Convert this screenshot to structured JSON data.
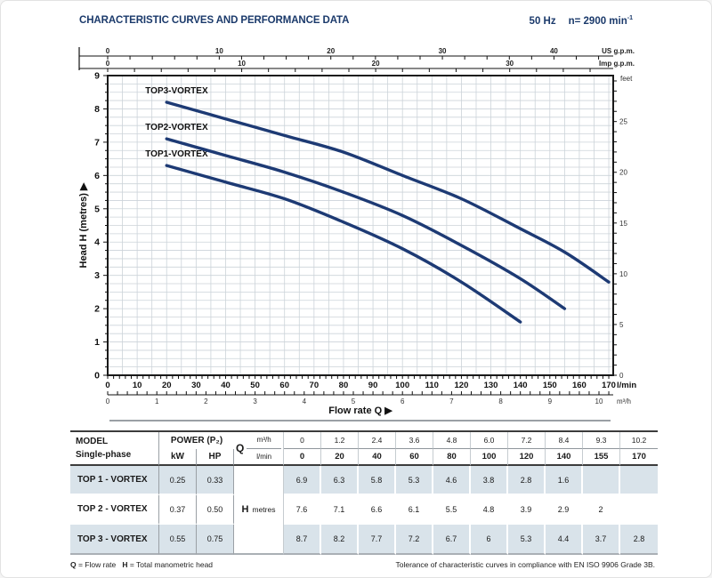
{
  "header": {
    "title": "CHARACTERISTIC CURVES AND PERFORMANCE DATA",
    "frequency": "50 Hz",
    "speed": "n= 2900 min",
    "speed_sup": "-1"
  },
  "chart_data": {
    "type": "line",
    "xlabel": "Flow rate Q",
    "xlabel_arrow": "▶",
    "ylabel": "Head H (metres)",
    "ylabel_arrow": "▶",
    "x_min": 0,
    "x_max": 171.5,
    "y_min": 0,
    "y_max": 9,
    "x_grid_step": 5,
    "y_grid_step": 0.25,
    "grid": true,
    "series_color": "#1d3a74",
    "axes": {
      "us_gpm": {
        "unit_label": "US g.p.m.",
        "factor_to_lmin": 3.785,
        "labels": [
          0,
          10,
          20,
          30,
          40
        ],
        "minor_step": 2
      },
      "imp_gpm": {
        "unit_label": "Imp g.p.m.",
        "factor_to_lmin": 4.546,
        "labels": [
          0,
          10,
          20,
          30
        ],
        "minor_step": 2
      },
      "lmin": {
        "unit_label": "l/min",
        "labels": [
          0,
          10,
          20,
          30,
          40,
          50,
          60,
          70,
          80,
          90,
          100,
          110,
          120,
          130,
          140,
          150,
          160,
          170
        ],
        "minor_step": 2
      },
      "m3h": {
        "unit_label": "m³/h",
        "factor_to_lmin": 16.667,
        "labels": [
          0,
          1,
          2,
          3,
          4,
          5,
          6,
          7,
          8,
          9,
          10
        ],
        "minor_step": 0.2
      },
      "metres": {
        "labels": [
          0,
          1,
          2,
          3,
          4,
          5,
          6,
          7,
          8,
          9
        ],
        "minor_step": 0.25
      },
      "feet": {
        "unit_label": "feet",
        "factor_to_m": 0.3048,
        "labels": [
          0,
          5,
          10,
          15,
          20,
          25
        ],
        "minor_step": 1
      }
    },
    "series": [
      {
        "name": "TOP1-VORTEX",
        "points": [
          [
            20,
            6.3
          ],
          [
            40,
            5.8
          ],
          [
            60,
            5.3
          ],
          [
            80,
            4.6
          ],
          [
            100,
            3.8
          ],
          [
            120,
            2.8
          ],
          [
            140,
            1.6
          ]
        ]
      },
      {
        "name": "TOP2-VORTEX",
        "points": [
          [
            20,
            7.1
          ],
          [
            40,
            6.6
          ],
          [
            60,
            6.1
          ],
          [
            80,
            5.5
          ],
          [
            100,
            4.8
          ],
          [
            120,
            3.9
          ],
          [
            140,
            2.9
          ],
          [
            155,
            2.0
          ]
        ]
      },
      {
        "name": "TOP3-VORTEX",
        "points": [
          [
            20,
            8.2
          ],
          [
            40,
            7.7
          ],
          [
            60,
            7.2
          ],
          [
            80,
            6.7
          ],
          [
            100,
            6.0
          ],
          [
            120,
            5.3
          ],
          [
            140,
            4.4
          ],
          [
            155,
            3.7
          ],
          [
            170,
            2.8
          ]
        ]
      }
    ]
  },
  "table": {
    "model_header": "MODEL",
    "model_subheader": "Single-phase",
    "power_header": "POWER (P₂)",
    "kw_header": "kW",
    "hp_header": "HP",
    "q_label": "Q",
    "m3h_unit": "m³/h",
    "lmin_unit": "l/min",
    "m3h_values": [
      "0",
      "1.2",
      "2.4",
      "3.6",
      "4.8",
      "6.0",
      "7.2",
      "8.4",
      "9.3",
      "10.2"
    ],
    "lmin_values": [
      "0",
      "20",
      "40",
      "60",
      "80",
      "100",
      "120",
      "140",
      "155",
      "170"
    ],
    "h_label": "H",
    "h_unit": "metres",
    "rows": [
      {
        "model": "TOP 1 - VORTEX",
        "kw": "0.25",
        "hp": "0.33",
        "h": [
          "6.9",
          "6.3",
          "5.8",
          "5.3",
          "4.6",
          "3.8",
          "2.8",
          "1.6",
          "",
          ""
        ]
      },
      {
        "model": "TOP 2 - VORTEX",
        "kw": "0.37",
        "hp": "0.50",
        "h": [
          "7.6",
          "7.1",
          "6.6",
          "6.1",
          "5.5",
          "4.8",
          "3.9",
          "2.9",
          "2",
          ""
        ]
      },
      {
        "model": "TOP 3 - VORTEX",
        "kw": "0.55",
        "hp": "0.75",
        "h": [
          "8.7",
          "8.2",
          "7.7",
          "7.2",
          "6.7",
          "6",
          "5.3",
          "4.4",
          "3.7",
          "2.8"
        ]
      }
    ]
  },
  "footer": {
    "legend_q_bold": "Q",
    "legend_q_rest": " = Flow rate",
    "legend_h_bold": "H",
    "legend_h_rest": " = Total manometric head",
    "tolerance": "Tolerance of characteristic curves in compliance with EN ISO 9906 Grade 3B."
  },
  "colors": {
    "accent": "#1b3a6b",
    "curve": "#1d3a74",
    "row_blue": "#d9e3ea",
    "grid": "#ccd3d9"
  }
}
